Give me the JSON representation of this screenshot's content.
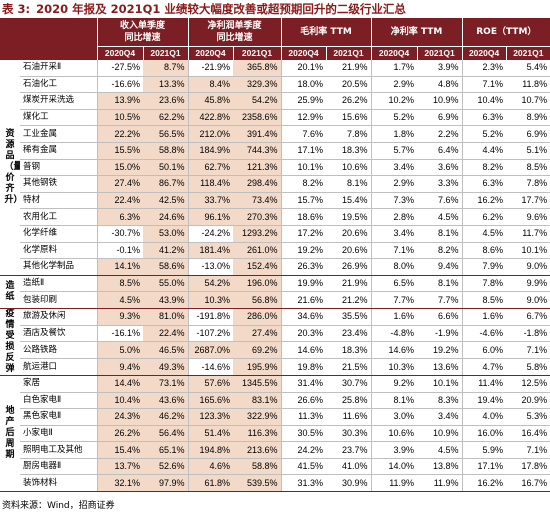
{
  "title": {
    "prefix": "表 3:",
    "text": "2020 年报及 2021Q1 业绩较大幅度改善或超预期回升的二级行业汇总"
  },
  "header": {
    "groups": [
      {
        "l1": "收入单季度",
        "l2": "同比增速"
      },
      {
        "l1": "净利润单季度",
        "l2": "同比增速"
      },
      {
        "l1": "毛利率 TTM",
        "l2": ""
      },
      {
        "l1": "净利率 TTM",
        "l2": ""
      },
      {
        "l1": "ROE（TTM）",
        "l2": ""
      }
    ],
    "periods": [
      "2020Q4",
      "2021Q1",
      "2020Q4",
      "2021Q1",
      "2020Q4",
      "2021Q1",
      "2020Q4",
      "2021Q1",
      "2020Q4",
      "2021Q1"
    ]
  },
  "sections": [
    {
      "name": "资源品（量价齐升）",
      "rows": [
        {
          "name": "石油开采Ⅱ",
          "values": [
            "-27.5%",
            "8.7%",
            "-21.9%",
            "365.8%",
            "20.1%",
            "21.9%",
            "1.7%",
            "3.9%",
            "2.3%",
            "5.4%"
          ]
        },
        {
          "name": "石油化工",
          "values": [
            "-16.6%",
            "13.3%",
            "8.4%",
            "329.3%",
            "18.0%",
            "20.5%",
            "2.9%",
            "4.8%",
            "7.1%",
            "11.8%"
          ]
        },
        {
          "name": "煤炭开采洗选",
          "values": [
            "13.9%",
            "23.6%",
            "45.8%",
            "54.2%",
            "25.9%",
            "26.2%",
            "10.2%",
            "10.9%",
            "10.4%",
            "10.7%"
          ]
        },
        {
          "name": "煤化工",
          "values": [
            "10.5%",
            "62.2%",
            "422.8%",
            "2358.6%",
            "12.9%",
            "15.6%",
            "5.2%",
            "6.9%",
            "6.3%",
            "8.9%"
          ]
        },
        {
          "name": "工业金属",
          "values": [
            "22.2%",
            "56.5%",
            "212.0%",
            "391.4%",
            "7.6%",
            "7.8%",
            "1.8%",
            "2.2%",
            "5.2%",
            "6.9%"
          ]
        },
        {
          "name": "稀有金属",
          "values": [
            "15.5%",
            "58.8%",
            "184.9%",
            "744.3%",
            "17.1%",
            "18.3%",
            "5.7%",
            "6.4%",
            "4.4%",
            "5.1%"
          ]
        },
        {
          "name": "普钢",
          "values": [
            "15.0%",
            "50.1%",
            "62.7%",
            "121.3%",
            "10.1%",
            "10.6%",
            "3.4%",
            "3.6%",
            "8.2%",
            "8.5%"
          ]
        },
        {
          "name": "其他钢铁",
          "values": [
            "27.4%",
            "86.7%",
            "118.4%",
            "298.4%",
            "8.2%",
            "8.1%",
            "2.9%",
            "3.3%",
            "6.3%",
            "7.8%"
          ]
        },
        {
          "name": "特材",
          "values": [
            "22.4%",
            "42.5%",
            "33.7%",
            "73.4%",
            "15.7%",
            "15.4%",
            "7.3%",
            "7.6%",
            "16.2%",
            "17.7%"
          ]
        },
        {
          "name": "农用化工",
          "values": [
            "6.3%",
            "24.6%",
            "96.1%",
            "270.3%",
            "18.6%",
            "19.5%",
            "2.8%",
            "4.5%",
            "6.2%",
            "9.6%"
          ]
        },
        {
          "name": "化学纤维",
          "values": [
            "-30.7%",
            "53.0%",
            "-24.2%",
            "1293.2%",
            "17.2%",
            "20.6%",
            "3.4%",
            "8.1%",
            "4.5%",
            "11.7%"
          ]
        },
        {
          "name": "化学原料",
          "values": [
            "-0.1%",
            "41.2%",
            "181.4%",
            "261.0%",
            "19.2%",
            "20.6%",
            "7.1%",
            "8.2%",
            "8.6%",
            "10.1%"
          ]
        },
        {
          "name": "其他化学制品",
          "values": [
            "14.1%",
            "58.6%",
            "-13.0%",
            "152.4%",
            "26.3%",
            "26.9%",
            "8.0%",
            "9.4%",
            "7.9%",
            "9.0%"
          ]
        }
      ]
    },
    {
      "name": "造纸",
      "rows": [
        {
          "name": "造纸Ⅱ",
          "values": [
            "8.5%",
            "55.0%",
            "54.2%",
            "196.0%",
            "19.9%",
            "21.9%",
            "6.5%",
            "8.1%",
            "7.8%",
            "9.9%"
          ]
        },
        {
          "name": "包装印刷",
          "values": [
            "4.5%",
            "43.9%",
            "10.3%",
            "56.8%",
            "21.6%",
            "21.2%",
            "7.7%",
            "7.7%",
            "8.5%",
            "9.0%"
          ]
        }
      ]
    },
    {
      "name": "疫情受损反弹",
      "rows": [
        {
          "name": "旅游及休闲",
          "values": [
            "9.3%",
            "81.0%",
            "-191.8%",
            "286.0%",
            "34.6%",
            "35.5%",
            "1.6%",
            "6.6%",
            "1.6%",
            "6.7%"
          ]
        },
        {
          "name": "酒店及餐饮",
          "values": [
            "-16.1%",
            "22.4%",
            "-107.2%",
            "27.4%",
            "20.3%",
            "23.4%",
            "-4.8%",
            "-1.9%",
            "-4.6%",
            "-1.8%"
          ]
        },
        {
          "name": "公路铁路",
          "values": [
            "5.0%",
            "46.5%",
            "2687.0%",
            "69.2%",
            "14.6%",
            "18.3%",
            "14.6%",
            "19.2%",
            "6.0%",
            "7.1%"
          ]
        },
        {
          "name": "航运港口",
          "values": [
            "9.4%",
            "49.3%",
            "-14.6%",
            "195.9%",
            "19.8%",
            "21.5%",
            "10.3%",
            "13.6%",
            "4.7%",
            "5.8%"
          ]
        }
      ]
    },
    {
      "name": "地产后周期",
      "rows": [
        {
          "name": "家居",
          "values": [
            "14.4%",
            "73.1%",
            "57.6%",
            "1345.5%",
            "31.4%",
            "30.7%",
            "9.2%",
            "10.1%",
            "11.4%",
            "12.5%"
          ]
        },
        {
          "name": "白色家电Ⅱ",
          "values": [
            "10.4%",
            "43.6%",
            "165.6%",
            "83.1%",
            "26.6%",
            "25.8%",
            "8.1%",
            "8.3%",
            "19.4%",
            "20.9%"
          ]
        },
        {
          "name": "黑色家电Ⅱ",
          "values": [
            "24.3%",
            "46.2%",
            "123.3%",
            "322.9%",
            "11.3%",
            "11.6%",
            "3.0%",
            "3.4%",
            "4.0%",
            "5.3%"
          ]
        },
        {
          "name": "小家电Ⅱ",
          "values": [
            "26.2%",
            "56.4%",
            "51.4%",
            "116.3%",
            "30.5%",
            "30.3%",
            "10.6%",
            "10.9%",
            "16.0%",
            "16.4%"
          ]
        },
        {
          "name": "照明电工及其他",
          "values": [
            "15.4%",
            "65.1%",
            "194.8%",
            "213.6%",
            "24.2%",
            "23.7%",
            "3.9%",
            "4.5%",
            "5.9%",
            "7.1%"
          ]
        },
        {
          "name": "厨房电器Ⅱ",
          "values": [
            "13.7%",
            "52.6%",
            "4.6%",
            "58.8%",
            "41.5%",
            "41.0%",
            "14.0%",
            "13.8%",
            "17.1%",
            "17.8%"
          ]
        },
        {
          "name": "装饰材料",
          "values": [
            "32.1%",
            "97.9%",
            "61.8%",
            "539.5%",
            "31.3%",
            "30.9%",
            "11.9%",
            "11.9%",
            "16.2%",
            "16.7%"
          ]
        }
      ]
    }
  ],
  "source": "资料来源：Wind，招商证券",
  "colors": {
    "header_bg": "#7b1f24",
    "highlight_bg": "#f2d9c8",
    "title_color": "#8b1a1a"
  }
}
